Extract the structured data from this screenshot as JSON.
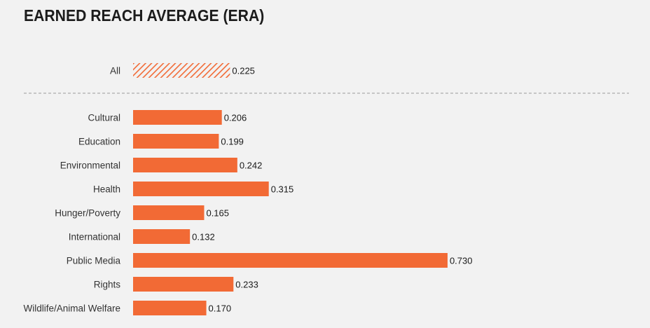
{
  "chart_data": {
    "type": "bar",
    "orientation": "horizontal",
    "title": "EARNED REACH AVERAGE (ERA)",
    "xlabel": "",
    "ylabel": "",
    "grid": false,
    "bar_color": "#f26a35",
    "summary": {
      "category": "All",
      "value": 0.225,
      "value_label": "0.225",
      "style": "hatched"
    },
    "categories": [
      "Cultural",
      "Education",
      "Environmental",
      "Health",
      "Hunger/Poverty",
      "International",
      "Public Media",
      "Rights",
      "Wildlife/Animal Welfare"
    ],
    "values": [
      0.206,
      0.199,
      0.242,
      0.315,
      0.165,
      0.132,
      0.73,
      0.233,
      0.17
    ],
    "value_labels": [
      "0.206",
      "0.199",
      "0.242",
      "0.315",
      "0.165",
      "0.132",
      "0.730",
      "0.233",
      "0.170"
    ]
  }
}
